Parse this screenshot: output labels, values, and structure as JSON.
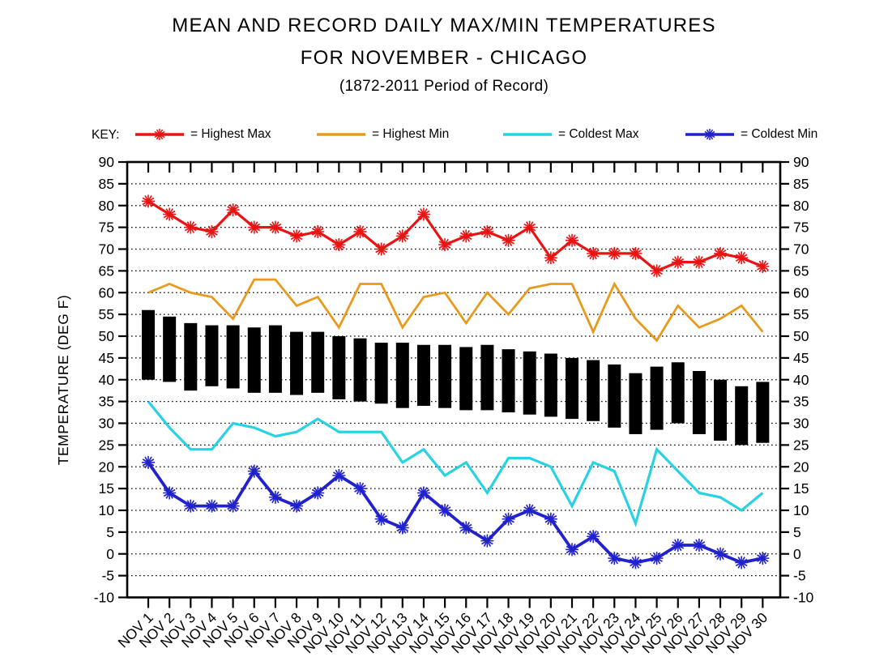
{
  "title": {
    "line1": "MEAN AND RECORD DAILY MAX/MIN TEMPERATURES",
    "line2": "FOR NOVEMBER - CHICAGO",
    "line3": "(1872-2011 Period of Record)"
  },
  "key": {
    "label": "KEY:",
    "items": [
      {
        "name": "highest-max",
        "label": "= Highest Max",
        "color": "#e81414",
        "marker": "star"
      },
      {
        "name": "highest-min",
        "label": "= Highest Min",
        "color": "#e89a1e",
        "marker": "line"
      },
      {
        "name": "coldest-max",
        "label": "= Coldest Max",
        "color": "#28d2e2",
        "marker": "line"
      },
      {
        "name": "coldest-min",
        "label": "= Coldest Min",
        "color": "#2222cc",
        "marker": "star"
      }
    ]
  },
  "y_axis": {
    "label": "TEMPERATURE (DEG F)",
    "min": -10,
    "max": 90,
    "tick_step": 5,
    "tick_labels": [
      "90",
      "85",
      "80",
      "75",
      "70",
      "65",
      "60",
      "55",
      "50",
      "45",
      "40",
      "35",
      "30",
      "25",
      "20",
      "15",
      "10",
      "5",
      "0",
      "-5",
      "-10"
    ]
  },
  "chart_data": {
    "type": "line+bar",
    "title": "MEAN AND RECORD DAILY MAX/MIN TEMPERATURES FOR NOVEMBER - CHICAGO (1872-2011 Period of Record)",
    "xlabel": "",
    "ylabel": "TEMPERATURE (DEG F)",
    "ylim": [
      -10,
      90
    ],
    "grid": "horizontal dotted every 5 degrees from -5 to 85",
    "legend_position": "top",
    "categories": [
      "NOV 1",
      "NOV 2",
      "NOV 3",
      "NOV 4",
      "NOV 5",
      "NOV 6",
      "NOV 7",
      "NOV 8",
      "NOV 9",
      "NOV 10",
      "NOV 11",
      "NOV 12",
      "NOV 13",
      "NOV 14",
      "NOV 15",
      "NOV 16",
      "NOV 17",
      "NOV 18",
      "NOV 19",
      "NOV 20",
      "NOV 21",
      "NOV 22",
      "NOV 23",
      "NOV 24",
      "NOV 25",
      "NOV 26",
      "NOV 27",
      "NOV 28",
      "NOV 29",
      "NOV 30"
    ],
    "series": [
      {
        "name": "Highest Max",
        "type": "line",
        "color": "#e81414",
        "marker": "asterisk",
        "line_width": 3.2,
        "values": [
          81,
          78,
          75,
          74,
          79,
          75,
          75,
          73,
          74,
          71,
          74,
          70,
          73,
          78,
          71,
          73,
          74,
          72,
          75,
          68,
          72,
          69,
          69,
          69,
          65,
          67,
          67,
          69,
          68,
          66
        ]
      },
      {
        "name": "Highest Min",
        "type": "line",
        "color": "#e89a1e",
        "marker": "none",
        "line_width": 2.8,
        "values": [
          60,
          62,
          60,
          59,
          54,
          63,
          63,
          57,
          59,
          52,
          62,
          62,
          52,
          59,
          60,
          53,
          60,
          55,
          61,
          62,
          62,
          51,
          62,
          54,
          49,
          57,
          52,
          54,
          57,
          51
        ]
      },
      {
        "name": "Coldest Max",
        "type": "line",
        "color": "#28d2e2",
        "marker": "none",
        "line_width": 3.2,
        "values": [
          35,
          29,
          24,
          24,
          30,
          29,
          27,
          28,
          31,
          28,
          28,
          28,
          21,
          24,
          18,
          21,
          14,
          22,
          22,
          20,
          11,
          21,
          19,
          7,
          24,
          19,
          14,
          13,
          10,
          14
        ]
      },
      {
        "name": "Coldest Min",
        "type": "line",
        "color": "#2222cc",
        "marker": "asterisk",
        "line_width": 3.8,
        "values": [
          21,
          14,
          11,
          11,
          11,
          19,
          13,
          11,
          14,
          18,
          15,
          8,
          6,
          14,
          10,
          6,
          3,
          8,
          10,
          8,
          1,
          4,
          -1,
          -2,
          -1,
          2,
          2,
          0,
          -2,
          -1
        ]
      },
      {
        "name": "Mean Daily Max/Min Range",
        "type": "bar",
        "color": "#000000",
        "values_high": [
          56,
          54.5,
          53,
          52.5,
          52.5,
          52,
          52.5,
          51,
          51,
          50,
          49.5,
          48.5,
          48.5,
          48,
          48,
          47.5,
          48,
          47,
          46.5,
          46,
          45,
          44.5,
          43.5,
          41.5,
          43,
          44,
          42,
          40,
          38.5,
          39.5
        ],
        "values_low": [
          40,
          39.5,
          37.5,
          38.5,
          38,
          37,
          37,
          36.5,
          37,
          35.5,
          35,
          34.5,
          33.5,
          34,
          33.5,
          33,
          33,
          32.5,
          32,
          31.5,
          31,
          30.5,
          29,
          27.5,
          28.5,
          30,
          27.5,
          26,
          25,
          25.5
        ]
      }
    ]
  }
}
